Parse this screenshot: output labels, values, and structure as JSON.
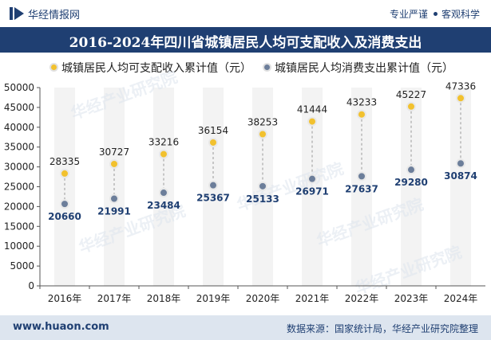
{
  "header": {
    "brand": "华经情报网",
    "tag1": "专业严谨",
    "tag2": "客观科学"
  },
  "title": "2016-2024年四川省城镇居民人均可支配收入及消费支出",
  "watermark": "华经产业研究院",
  "footer": {
    "url": "www.huaon.com",
    "source": "数据来源：国家统计局，华经产业研究院整理"
  },
  "colors": {
    "brand": "#1f3f72",
    "income": "#f2c12e",
    "expense": "#6c7e9a",
    "column_band": "#f3f3f3",
    "footer_bg": "#dde5ef"
  },
  "chart_data": {
    "type": "scatter",
    "categories": [
      "2016年",
      "2017年",
      "2018年",
      "2019年",
      "2020年",
      "2021年",
      "2022年",
      "2023年",
      "2024年"
    ],
    "series": [
      {
        "name": "城镇居民人均可支配收入累计值（元）",
        "values": [
          28335,
          30727,
          33216,
          36154,
          38253,
          41444,
          43233,
          45227,
          47336
        ]
      },
      {
        "name": "城镇居民人均消费支出累计值（元）",
        "values": [
          20660,
          21991,
          23484,
          25367,
          25133,
          26971,
          27637,
          29280,
          30874
        ]
      }
    ],
    "yticks": [
      0,
      5000,
      10000,
      15000,
      20000,
      25000,
      30000,
      35000,
      40000,
      45000,
      50000
    ],
    "ylim": [
      0,
      50000
    ],
    "legend": "top-left",
    "grid": false
  }
}
